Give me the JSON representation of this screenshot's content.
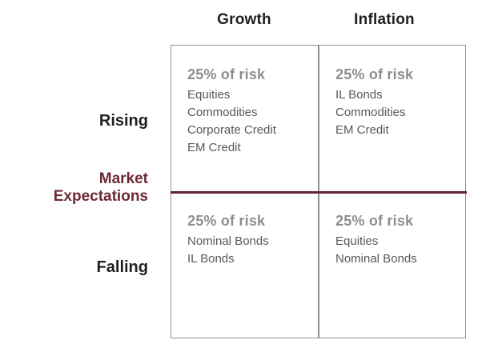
{
  "figure": {
    "columns": {
      "growth": "Growth",
      "inflation": "Inflation"
    },
    "rows": {
      "rising": "Rising",
      "falling": "Falling"
    },
    "axis": {
      "label_line1": "Market",
      "label_line2": "Expectations"
    },
    "quadrants": {
      "rising_growth": {
        "risk": "25% of risk",
        "assets": [
          "Equities",
          "Commodities",
          "Corporate Credit",
          "EM Credit"
        ]
      },
      "rising_inflation": {
        "risk": "25% of risk",
        "assets": [
          "IL Bonds",
          "Commodities",
          "EM Credit"
        ]
      },
      "falling_growth": {
        "risk": "25% of risk",
        "assets": [
          "Nominal Bonds",
          "IL Bonds"
        ]
      },
      "falling_inflation": {
        "risk": "25% of risk",
        "assets": [
          "Equities",
          "Nominal Bonds"
        ]
      }
    },
    "colors": {
      "accent_maroon": "#6d2a36",
      "divider_maroon": "#5f2430",
      "risk_gray": "#8e8e8e",
      "asset_gray": "#57585a",
      "header_black": "#231f20",
      "border_gray": "#8f9092",
      "background": "#ffffff"
    }
  }
}
